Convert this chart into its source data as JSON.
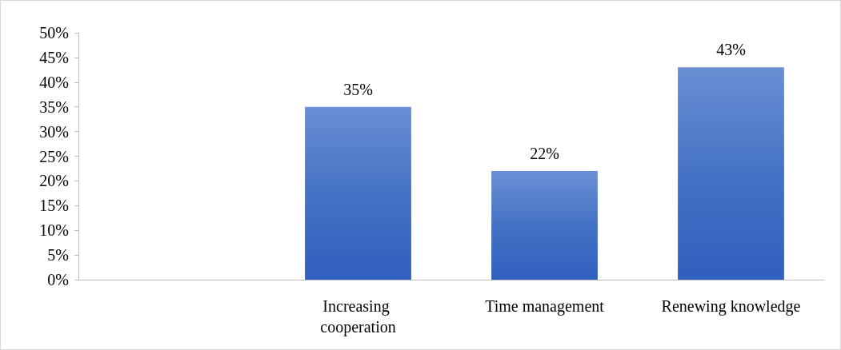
{
  "chart_data": {
    "type": "bar",
    "categories": [
      null,
      "Increasing cooperation",
      "Time management",
      "Renewing knowledge"
    ],
    "values": [
      null,
      35,
      22,
      43
    ],
    "value_labels": [
      null,
      "35%",
      "22%",
      "43%"
    ],
    "color": "#4472c4",
    "ylim": [
      0,
      50
    ],
    "yticks": [
      {
        "value": 0,
        "label": "0%"
      },
      {
        "value": 5,
        "label": "5%"
      },
      {
        "value": 10,
        "label": "10%"
      },
      {
        "value": 15,
        "label": "15%"
      },
      {
        "value": 20,
        "label": "20%"
      },
      {
        "value": 25,
        "label": "25%"
      },
      {
        "value": 30,
        "label": "30%"
      },
      {
        "value": 35,
        "label": "35%"
      },
      {
        "value": 40,
        "label": "40%"
      },
      {
        "value": 45,
        "label": "45%"
      },
      {
        "value": 50,
        "label": "50%"
      }
    ],
    "grid": false
  }
}
